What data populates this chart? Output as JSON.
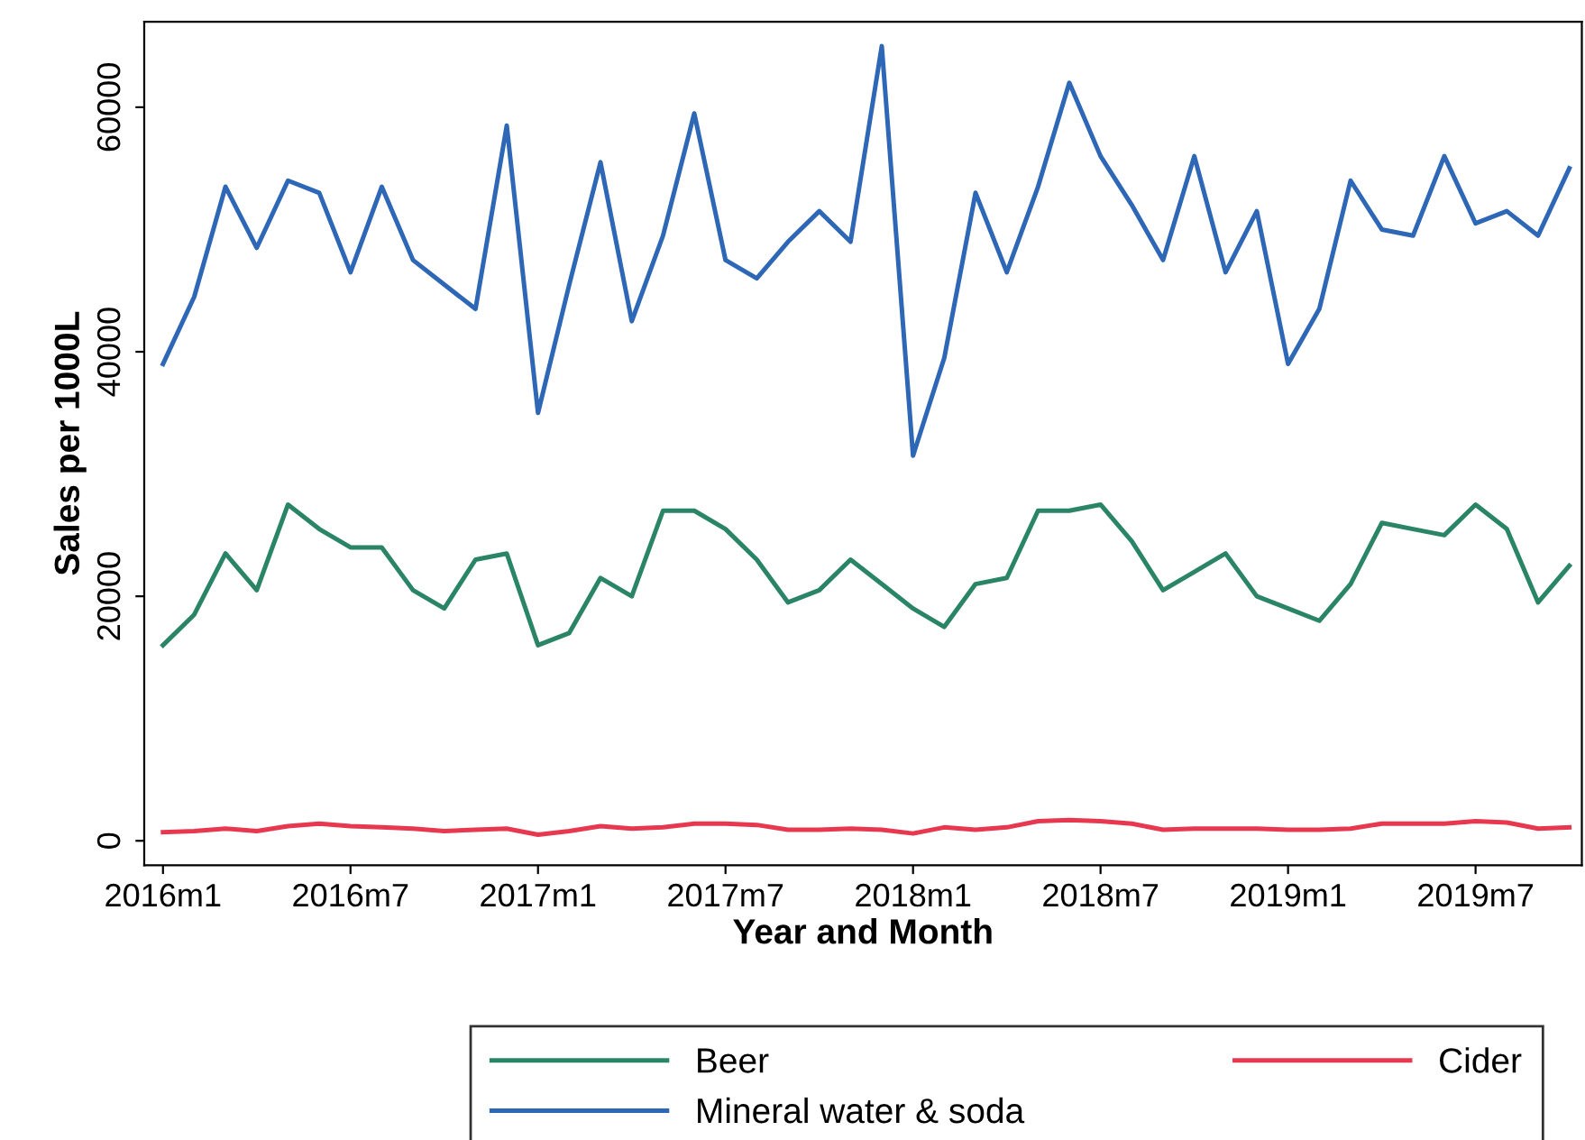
{
  "chart_data": {
    "type": "line",
    "xlabel": "Year and Month",
    "ylabel": "Sales per 1000L",
    "categories": [
      "2016m1",
      null,
      null,
      null,
      null,
      null,
      "2016m7",
      null,
      null,
      null,
      null,
      null,
      "2017m1",
      null,
      null,
      null,
      null,
      null,
      "2017m7",
      null,
      null,
      null,
      null,
      null,
      "2018m1",
      null,
      null,
      null,
      null,
      null,
      "2018m7",
      null,
      null,
      null,
      null,
      null,
      "2019m1",
      null,
      null,
      null,
      null,
      null,
      "2019m7",
      null,
      null,
      null
    ],
    "ylim": [
      -2000,
      67000
    ],
    "yticks": [
      0,
      20000,
      40000,
      60000
    ],
    "grid": false,
    "legend": "bottom",
    "marker": "none",
    "line_style": "solid",
    "series": [
      {
        "name": "Beer",
        "color": "#2a8466",
        "values": [
          16000,
          18500,
          23500,
          20500,
          27500,
          25500,
          24000,
          24000,
          20500,
          19000,
          23000,
          23500,
          16000,
          17000,
          21500,
          20000,
          27000,
          27000,
          25500,
          23000,
          19500,
          20500,
          23000,
          21000,
          19000,
          17500,
          21000,
          21500,
          27000,
          27000,
          27500,
          24500,
          20500,
          22000,
          23500,
          20000,
          19000,
          18000,
          21000,
          26000,
          25500,
          25000,
          27500,
          25500,
          19500,
          22500
        ]
      },
      {
        "name": "Mineral water & soda",
        "color": "#2d67b5",
        "values": [
          39000,
          44500,
          53500,
          48500,
          54000,
          53000,
          46500,
          53500,
          47500,
          45500,
          43500,
          58500,
          35000,
          45500,
          55500,
          42500,
          49500,
          59500,
          47500,
          46000,
          49000,
          51500,
          49000,
          65000,
          31500,
          39500,
          53000,
          46500,
          53500,
          62000,
          56000,
          52000,
          47500,
          56000,
          46500,
          51500,
          39000,
          43500,
          54000,
          50000,
          49500,
          56000,
          50500,
          51500,
          49500,
          55000
        ]
      },
      {
        "name": "Cider",
        "color": "#e8384f",
        "values": [
          700,
          800,
          1000,
          800,
          1200,
          1400,
          1200,
          1100,
          1000,
          800,
          900,
          1000,
          500,
          800,
          1200,
          1000,
          1100,
          1400,
          1400,
          1300,
          900,
          900,
          1000,
          900,
          600,
          1100,
          900,
          1100,
          1600,
          1700,
          1600,
          1400,
          900,
          1000,
          1000,
          1000,
          900,
          900,
          1000,
          1400,
          1400,
          1400,
          1600,
          1500,
          1000,
          1100
        ]
      }
    ]
  }
}
